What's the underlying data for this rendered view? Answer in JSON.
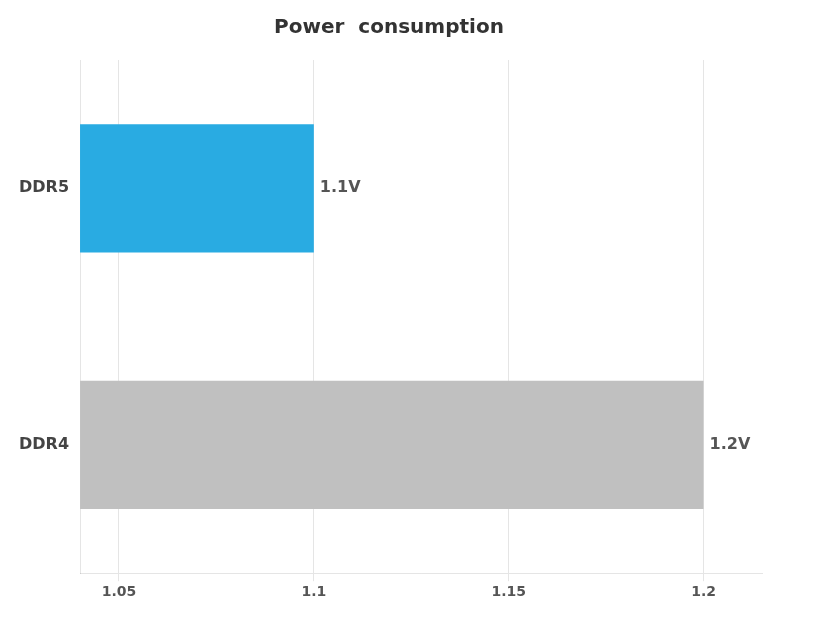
{
  "chart_data": {
    "type": "bar",
    "orientation": "horizontal",
    "title": "Power  consumption",
    "categories": [
      "DDR4",
      "DDR5"
    ],
    "values": [
      1.2,
      1.1
    ],
    "value_labels": [
      "1.2V",
      "1.1V"
    ],
    "data_labels": true,
    "colors": [
      "#c0c0c0",
      "#29abe2"
    ],
    "xlim": [
      1.04,
      1.215
    ],
    "xticks": [
      1.05,
      1.1,
      1.15,
      1.2
    ],
    "grid": true
  }
}
